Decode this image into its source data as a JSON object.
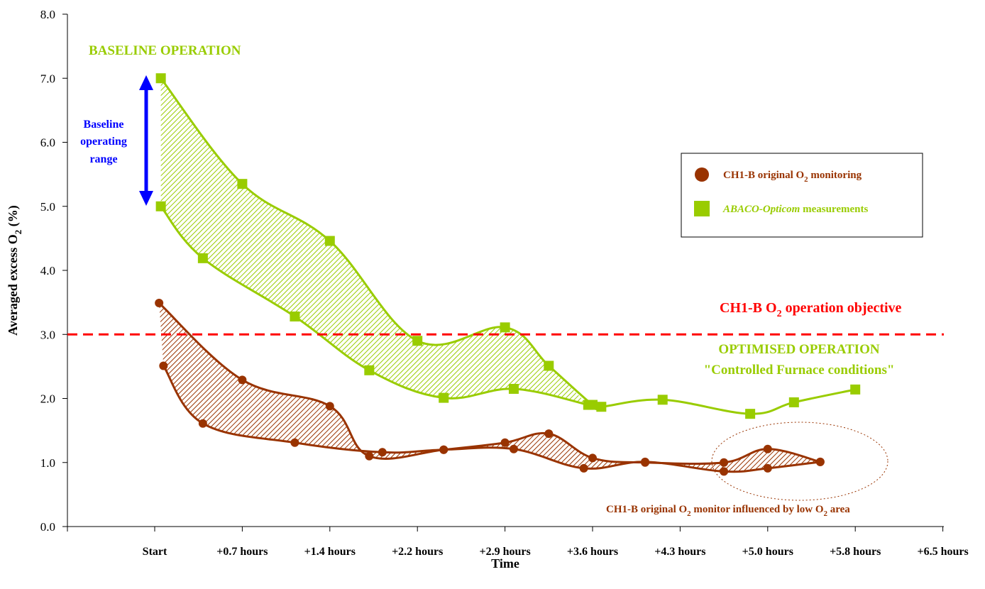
{
  "chart_data": {
    "type": "line",
    "title": "",
    "xlabel": "Time",
    "ylabel": "Averaged excess O",
    "ylabel_sub": "2",
    "ylabel_suffix": " (%)",
    "ylim": [
      0,
      8
    ],
    "yticks": [
      "0.0",
      "1.0",
      "2.0",
      "3.0",
      "4.0",
      "5.0",
      "6.0",
      "7.0",
      "8.0"
    ],
    "x_ticks": [
      "Start",
      "+0.7 hours",
      "+1.4 hours",
      "+2.2 hours",
      "+2.9 hours",
      "+3.6 hours",
      "+4.3 hours",
      "+5.0 hours",
      "+5.8 hours",
      "+6.5 hours"
    ],
    "x_range": [
      0,
      10
    ],
    "grid": false,
    "legend": {
      "position": "right",
      "entries": [
        {
          "prefix": "CH1-B original O",
          "sub": "2",
          "suffix": " monitoring",
          "italic_part": ""
        },
        {
          "prefix": "",
          "italic_part": "ABACO-Opticom",
          "suffix": " measurements",
          "sub": ""
        }
      ]
    },
    "objective_line": {
      "value": 3.0,
      "label_prefix": "CH1-B O",
      "label_sub": "2",
      "label_suffix": " operation objective",
      "color": "#ff0000"
    },
    "series": [
      {
        "name": "ABACO-Opticom measurements",
        "color": "#99cc00",
        "marker": "square",
        "upper": [
          [
            0.07,
            7.0
          ],
          [
            1.0,
            5.35
          ],
          [
            2.0,
            4.46
          ],
          [
            3.0,
            2.9
          ],
          [
            4.0,
            3.11
          ],
          [
            4.5,
            2.51
          ],
          [
            5.0,
            1.9
          ],
          [
            5.1,
            1.87
          ],
          [
            5.8,
            1.98
          ],
          [
            6.8,
            1.76
          ],
          [
            7.3,
            1.94
          ],
          [
            8.0,
            2.14
          ]
        ],
        "lower": [
          [
            0.07,
            5.0
          ],
          [
            0.55,
            4.19
          ],
          [
            1.6,
            3.28
          ],
          [
            2.45,
            2.44
          ],
          [
            3.3,
            2.01
          ],
          [
            4.1,
            2.15
          ],
          [
            4.95,
            1.9
          ]
        ]
      },
      {
        "name": "CH1-B original O2 monitoring",
        "color": "#993300",
        "marker": "circle",
        "upper": [
          [
            0.05,
            3.49
          ],
          [
            1.0,
            2.29
          ],
          [
            2.0,
            1.88
          ],
          [
            2.45,
            1.1
          ],
          [
            3.3,
            1.2
          ],
          [
            4.0,
            1.31
          ],
          [
            4.5,
            1.45
          ],
          [
            5.0,
            1.07
          ],
          [
            5.6,
            1.0
          ],
          [
            6.5,
            1.0
          ],
          [
            7.0,
            1.21
          ],
          [
            7.6,
            1.01
          ]
        ],
        "lower": [
          [
            0.1,
            2.51
          ],
          [
            0.55,
            1.61
          ],
          [
            1.6,
            1.31
          ],
          [
            2.6,
            1.16
          ],
          [
            3.3,
            1.2
          ],
          [
            4.1,
            1.21
          ],
          [
            4.9,
            0.91
          ],
          [
            5.6,
            1.01
          ],
          [
            6.5,
            0.86
          ],
          [
            7.0,
            0.91
          ],
          [
            7.6,
            1.01
          ]
        ]
      }
    ],
    "annotations": [
      {
        "text": "BASELINE OPERATION",
        "color": "#99cc00"
      },
      {
        "text": "Baseline",
        "color": "#0000ff"
      },
      {
        "text": "operating",
        "color": "#0000ff"
      },
      {
        "text": "range",
        "color": "#0000ff"
      },
      {
        "text": "OPTIMISED OPERATION",
        "color": "#99cc00"
      },
      {
        "text": "\"Controlled Furnace conditions\"",
        "color": "#99cc00"
      },
      {
        "prefix": "CH1-B original O",
        "sub": "2",
        "suffix": " monitor influenced by low O",
        "sub2": "2",
        "suffix2": " area",
        "color": "#993300"
      }
    ]
  }
}
